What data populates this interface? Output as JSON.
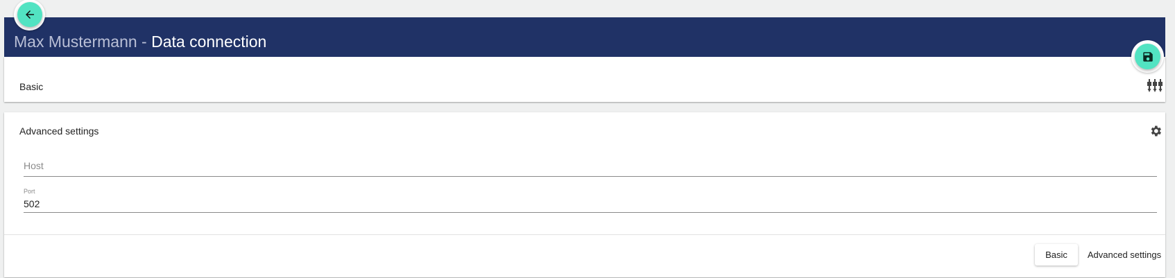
{
  "header": {
    "user": "Max Mustermann",
    "separator": " - ",
    "page_title": "Data connection",
    "back_icon": "arrow-left-icon",
    "save_icon": "floppy-disk-icon"
  },
  "colors": {
    "header_bg": "#203266",
    "accent": "#52e3c2"
  },
  "basic_section": {
    "title": "Basic",
    "icon": "tune-sliders-icon"
  },
  "advanced_section": {
    "title": "Advanced settings",
    "icon": "gear-icon",
    "host": {
      "placeholder": "Host",
      "value": ""
    },
    "port": {
      "label": "Port",
      "value": "502"
    }
  },
  "footer": {
    "basic_button": "Basic",
    "advanced_button": "Advanced settings"
  }
}
